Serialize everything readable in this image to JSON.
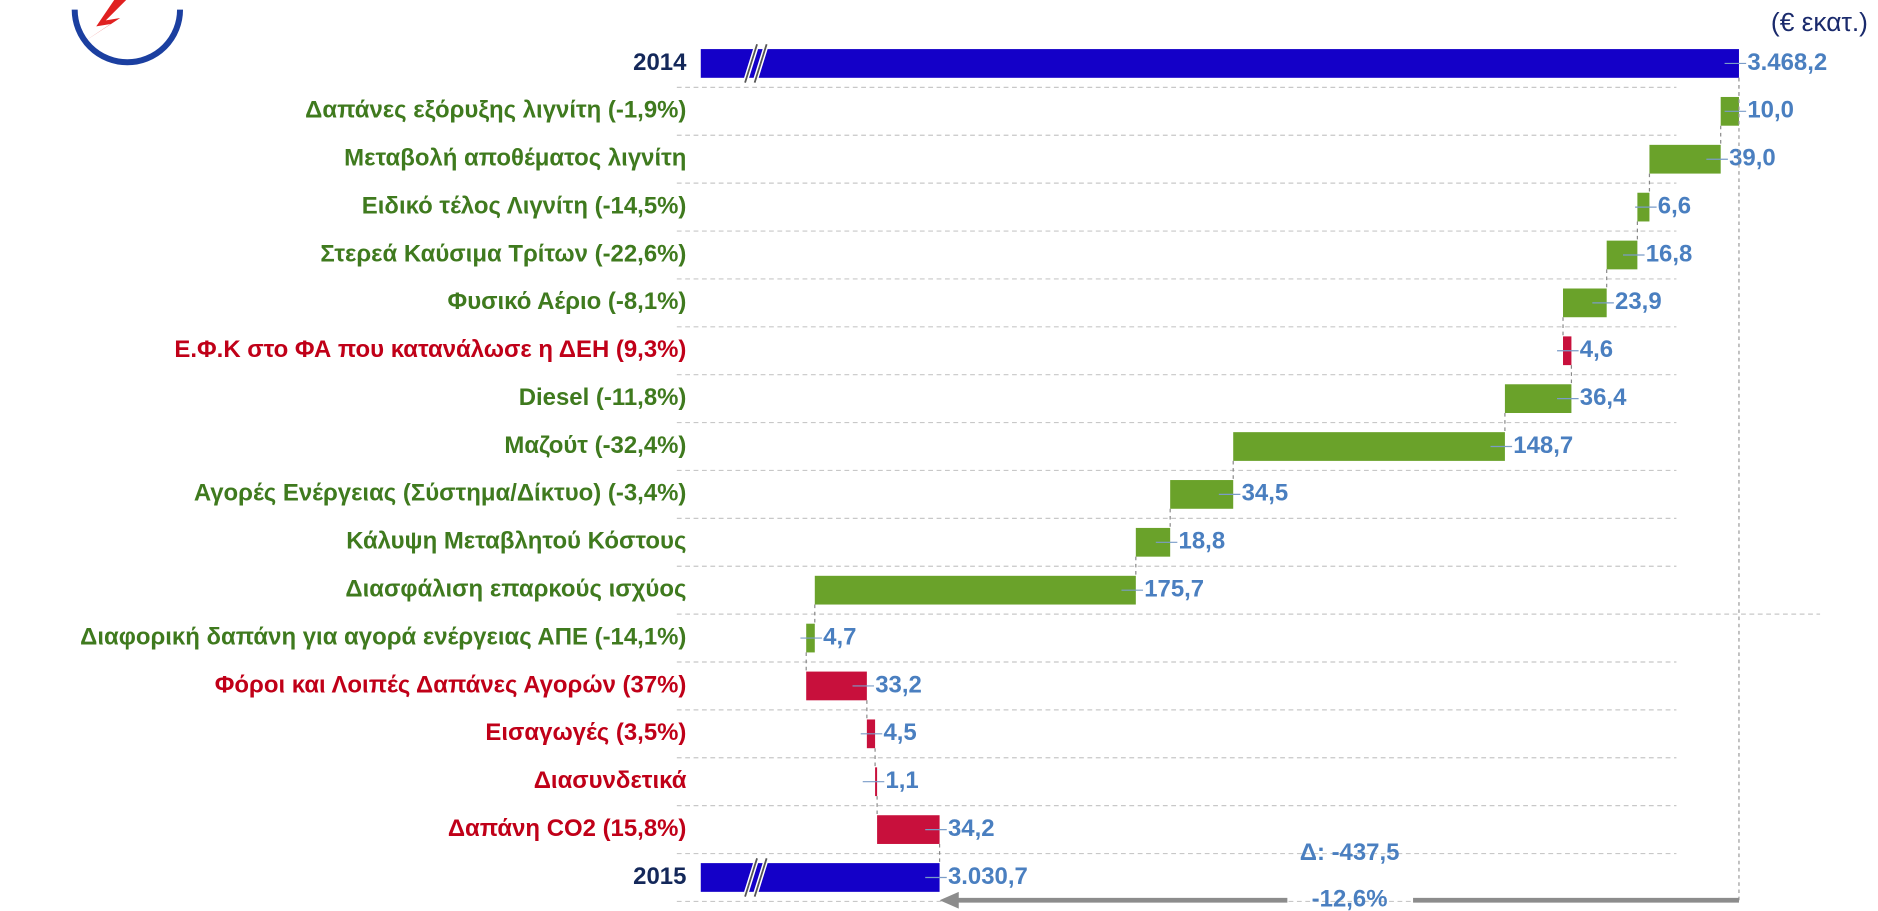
{
  "chart_data": {
    "type": "waterfall",
    "unit_note": "(€ εκατ.)",
    "categories": [
      "2014",
      "Δαπάνες εξόρυξης λιγνίτη (-1,9%)",
      "Μεταβολή αποθέματος λιγνίτη",
      "Ειδικό τέλος Λιγνίτη (-14,5%)",
      "Στερεά Καύσιμα Τρίτων (-22,6%)",
      "Φυσικό Αέριο (-8,1%)",
      "Ε.Φ.Κ στο ΦΑ που κατανάλωσε η ΔΕΗ  (9,3%)",
      "Diesel (-11,8%)",
      "Μαζούτ (-32,4%)",
      "Αγορές Ενέργειας (Σύστημα/Δίκτυο) (-3,4%)",
      "Κάλυψη Μεταβλητού Κόστους",
      "Διασφάλιση επαρκούς ισχύος",
      "Διαφορική δαπάνη για αγορά ενέργειας ΑΠΕ (-14,1%)",
      "Φόροι και Λοιπές Δαπάνες Αγορών (37%)",
      "Εισαγωγές (3,5%)",
      "Διασυνδετικά",
      "Δαπάνη CO2 (15,8%)",
      "2015"
    ],
    "measure": [
      "absolute",
      "relative",
      "relative",
      "relative",
      "relative",
      "relative",
      "relative",
      "relative",
      "relative",
      "relative",
      "relative",
      "relative",
      "relative",
      "relative",
      "relative",
      "relative",
      "relative",
      "total"
    ],
    "values": [
      3468.2,
      -10.0,
      -39.0,
      -6.6,
      -16.8,
      -23.9,
      4.6,
      -36.4,
      -148.7,
      -34.5,
      -18.8,
      -175.7,
      -4.7,
      33.2,
      4.5,
      1.1,
      34.2,
      3030.7
    ],
    "value_labels": [
      "3.468,2",
      "10,0",
      "39,0",
      "6,6",
      "16,8",
      "23,9",
      "4,6",
      "36,4",
      "148,7",
      "34,5",
      "18,8",
      "175,7",
      "4,7",
      "33,2",
      "4,5",
      "1,1",
      "34,2",
      "3.030,7"
    ],
    "total_color": "#1400c8",
    "decrease_color": "#6aa22a",
    "increase_color": "#c8103c",
    "xlim": [
      2900,
      3470
    ],
    "annotations": [
      "Δ: -437,5",
      "-12,6%"
    ]
  }
}
